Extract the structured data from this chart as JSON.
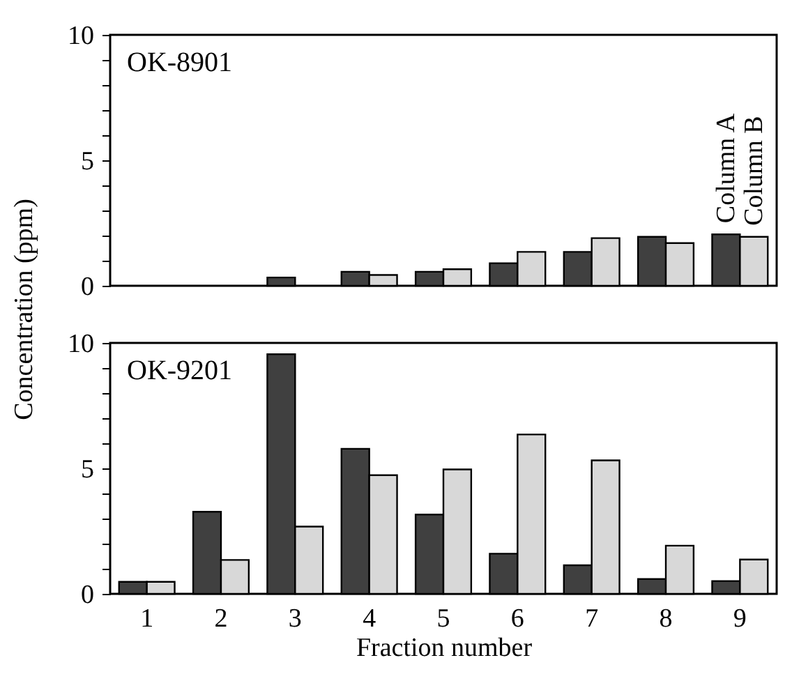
{
  "chart_data": [
    {
      "type": "bar",
      "title": "OK-8901",
      "ylabel": "Concentration (ppm)",
      "categories": [
        "1",
        "2",
        "3",
        "4",
        "5",
        "6",
        "7",
        "8",
        "9"
      ],
      "series": [
        {
          "name": "Column A",
          "color": "#404040",
          "values": [
            0,
            0,
            0.33,
            0.56,
            0.56,
            0.9,
            1.35,
            1.95,
            2.05
          ]
        },
        {
          "name": "Column B",
          "color": "#d8d8d8",
          "values": [
            0,
            0,
            0,
            0.43,
            0.66,
            1.35,
            1.9,
            1.7,
            1.95
          ]
        }
      ],
      "ylim": [
        0,
        10
      ],
      "yticks": [
        0,
        {
          "value": 1,
          "label": null
        },
        {
          "value": 2,
          "label": null
        },
        {
          "value": 3,
          "label": null
        },
        {
          "value": 4,
          "label": null
        },
        5,
        {
          "value": 6,
          "label": null
        },
        {
          "value": 7,
          "label": null
        },
        {
          "value": 8,
          "label": null
        },
        {
          "value": 9,
          "label": null
        },
        10
      ],
      "grid": false,
      "legend": false,
      "tick_labels": "y"
    },
    {
      "type": "bar",
      "title": "OK-9201",
      "xlabel": "Fraction number",
      "categories": [
        "1",
        "2",
        "3",
        "4",
        "5",
        "6",
        "7",
        "8",
        "9"
      ],
      "series": [
        {
          "color": "#404040",
          "values": [
            0.48,
            3.27,
            9.55,
            5.78,
            3.16,
            1.6,
            1.14,
            0.59,
            0.51
          ]
        },
        {
          "color": "#d8d8d8",
          "values": [
            0.48,
            1.35,
            2.68,
            4.73,
            4.96,
            6.35,
            5.32,
            1.92,
            1.37
          ]
        }
      ],
      "ylim": [
        0,
        10
      ],
      "yticks": [
        0,
        {
          "value": 1,
          "label": null
        },
        {
          "value": 2,
          "label": null
        },
        {
          "value": 3,
          "label": null
        },
        {
          "value": 4,
          "label": null
        },
        5,
        {
          "value": 6,
          "label": null
        },
        {
          "value": 7,
          "label": null
        },
        {
          "value": 8,
          "label": null
        },
        {
          "value": 9,
          "label": null
        },
        10
      ],
      "grid": false,
      "legend": false
    }
  ]
}
